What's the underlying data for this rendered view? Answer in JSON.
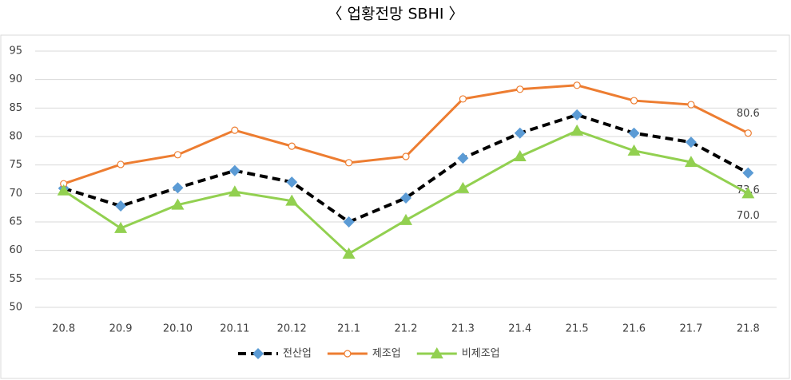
{
  "chart_data": {
    "type": "line",
    "title": "〈 업황전망 SBHI 〉",
    "categories": [
      "20.8",
      "20.9",
      "20.10",
      "20.11",
      "20.12",
      "21.1",
      "21.2",
      "21.3",
      "21.4",
      "21.5",
      "21.6",
      "21.7",
      "21.8"
    ],
    "ylim": [
      50,
      95
    ],
    "yticks": [
      50,
      55,
      60,
      65,
      70,
      75,
      80,
      85,
      90,
      95
    ],
    "grid": true,
    "series": [
      {
        "name": "전산업",
        "color": "#000000",
        "marker_color": "#5b9bd5",
        "marker": "diamond",
        "dashed": true,
        "values": [
          70.9,
          67.8,
          71.0,
          74.0,
          72.0,
          65.0,
          69.2,
          76.2,
          80.6,
          83.8,
          80.6,
          79.0,
          73.6
        ],
        "value_labels": [
          null,
          null,
          null,
          null,
          null,
          null,
          null,
          null,
          null,
          null,
          null,
          null,
          "73.6"
        ]
      },
      {
        "name": "제조업",
        "color": "#ed7d31",
        "marker_color": "#ffffff",
        "marker": "circle",
        "dashed": false,
        "values": [
          71.7,
          75.1,
          76.8,
          81.1,
          78.3,
          75.4,
          76.5,
          86.6,
          88.3,
          89.0,
          86.3,
          85.6,
          80.6
        ],
        "value_labels": [
          null,
          null,
          null,
          null,
          null,
          null,
          null,
          null,
          null,
          null,
          null,
          null,
          "80.6"
        ]
      },
      {
        "name": "비제조업",
        "color": "#92d050",
        "marker_color": "#92d050",
        "marker": "triangle",
        "dashed": false,
        "values": [
          70.5,
          63.9,
          68.0,
          70.3,
          68.7,
          59.4,
          65.3,
          70.9,
          76.5,
          81.0,
          77.5,
          75.5,
          70.0
        ],
        "value_labels": [
          null,
          null,
          null,
          null,
          null,
          null,
          null,
          null,
          null,
          null,
          null,
          null,
          "70.0"
        ]
      }
    ]
  }
}
